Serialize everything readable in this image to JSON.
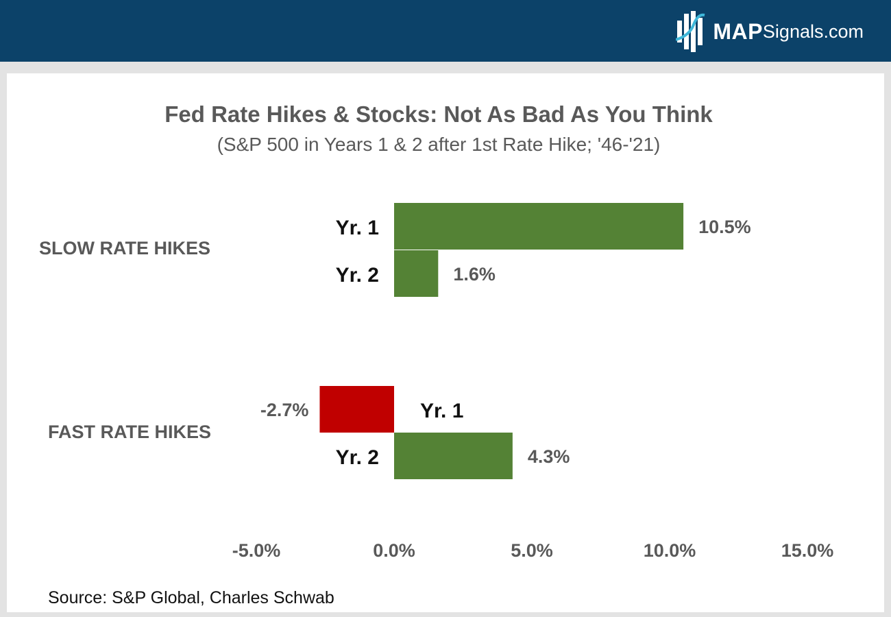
{
  "header": {
    "brand_bold": "MAP",
    "brand_regular": "Signals.com"
  },
  "colors": {
    "header_bg": "#0c4269",
    "positive_bar": "#548235",
    "negative_bar": "#c00000",
    "text_gray": "#595959"
  },
  "chart_data": {
    "type": "bar",
    "orientation": "horizontal",
    "title": "Fed Rate Hikes & Stocks: Not As Bad As You Think",
    "subtitle": "(S&P 500 in Years 1 & 2 after 1st Rate Hike; '46-'21)",
    "groups": [
      {
        "name": "SLOW RATE HIKES",
        "bars": [
          {
            "label": "Yr. 1",
            "value": 10.5,
            "value_label": "10.5%"
          },
          {
            "label": "Yr. 2",
            "value": 1.6,
            "value_label": "1.6%"
          }
        ]
      },
      {
        "name": "FAST RATE HIKES",
        "bars": [
          {
            "label": "Yr. 1",
            "value": -2.7,
            "value_label": "-2.7%"
          },
          {
            "label": "Yr. 2",
            "value": 4.3,
            "value_label": "4.3%"
          }
        ]
      }
    ],
    "xlim": [
      -5,
      15
    ],
    "xticks": [
      -5,
      0,
      5,
      10,
      15
    ],
    "xtick_labels": [
      "-5.0%",
      "0.0%",
      "5.0%",
      "10.0%",
      "15.0%"
    ],
    "grid": false,
    "legend": "none"
  },
  "source": "Source: S&P Global, Charles Schwab"
}
